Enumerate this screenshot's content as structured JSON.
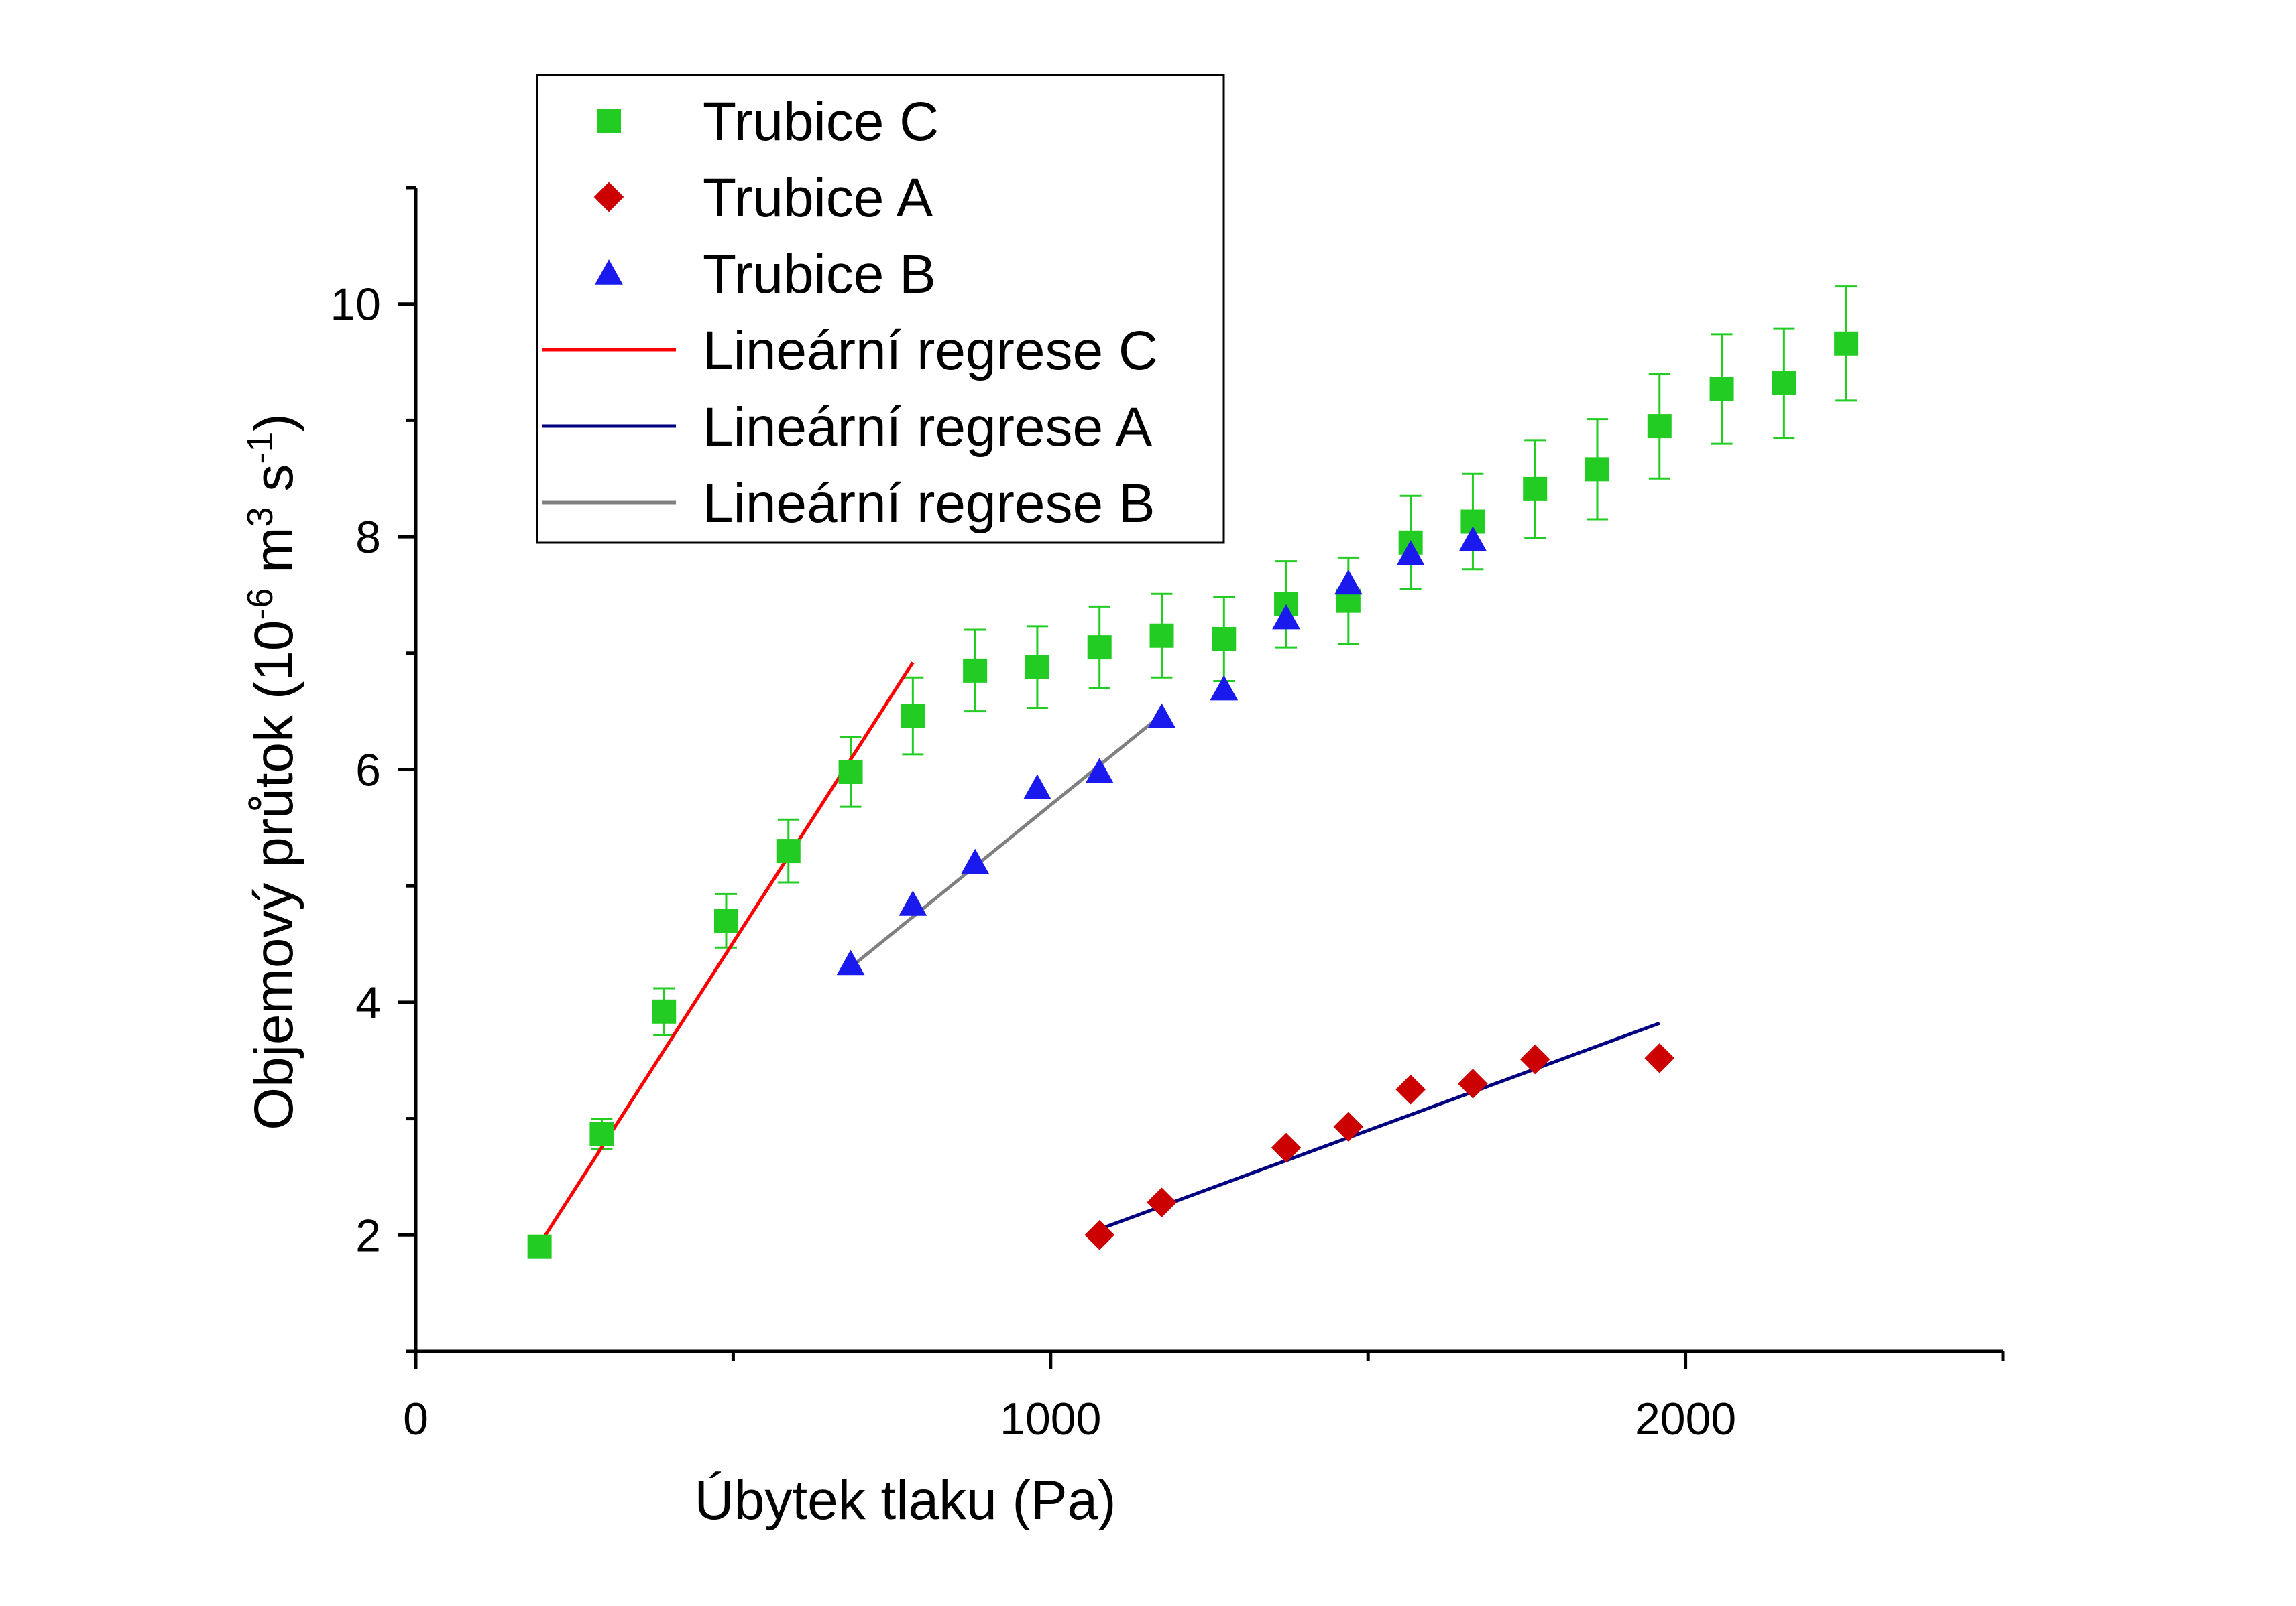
{
  "chart_data": {
    "type": "scatter",
    "xlabel": "Úbytek tlaku (Pa)",
    "ylabel": {
      "prefix": "Objemový průtok (10",
      "exp1": "-6",
      "mid1": " m",
      "exp2": "3",
      "mid2": " s",
      "exp3": "-1",
      "suffix": ")"
    },
    "xlim": [
      0,
      2500
    ],
    "ylim": [
      1,
      11
    ],
    "x_ticks": [
      0,
      1000,
      2000
    ],
    "x_tick_labels": [
      "0",
      "1000",
      "2000"
    ],
    "x_minor_ticks": [
      500,
      1500,
      2500
    ],
    "y_ticks": [
      2,
      4,
      6,
      8,
      10
    ],
    "y_tick_labels": [
      "2",
      "4",
      "6",
      "8",
      "10"
    ],
    "y_minor_ticks": [
      1,
      3,
      5,
      7,
      9,
      11
    ],
    "grid": false,
    "legend_position": "top-left",
    "series": [
      {
        "name": "Trubice C",
        "marker": "square",
        "color": "#22cc22",
        "points": [
          {
            "x": 195,
            "y": 1.9,
            "err": 0
          },
          {
            "x": 293,
            "y": 2.87,
            "err": 0.13
          },
          {
            "x": 391,
            "y": 3.92,
            "err": 0.2
          },
          {
            "x": 489,
            "y": 4.7,
            "err": 0.23
          },
          {
            "x": 587,
            "y": 5.3,
            "err": 0.27
          },
          {
            "x": 685,
            "y": 5.98,
            "err": 0.3
          },
          {
            "x": 783,
            "y": 6.46,
            "err": 0.33
          },
          {
            "x": 881,
            "y": 6.85,
            "err": 0.35
          },
          {
            "x": 979,
            "y": 6.88,
            "err": 0.35
          },
          {
            "x": 1077,
            "y": 7.05,
            "err": 0.35
          },
          {
            "x": 1175,
            "y": 7.15,
            "err": 0.36
          },
          {
            "x": 1273,
            "y": 7.12,
            "err": 0.36
          },
          {
            "x": 1371,
            "y": 7.42,
            "err": 0.37
          },
          {
            "x": 1469,
            "y": 7.45,
            "err": 0.37
          },
          {
            "x": 1567,
            "y": 7.95,
            "err": 0.4
          },
          {
            "x": 1665,
            "y": 8.13,
            "err": 0.41
          },
          {
            "x": 1763,
            "y": 8.41,
            "err": 0.42
          },
          {
            "x": 1861,
            "y": 8.58,
            "err": 0.43
          },
          {
            "x": 1959,
            "y": 8.95,
            "err": 0.45
          },
          {
            "x": 2057,
            "y": 9.27,
            "err": 0.47
          },
          {
            "x": 2155,
            "y": 9.32,
            "err": 0.47
          },
          {
            "x": 2253,
            "y": 9.66,
            "err": 0.49
          }
        ]
      },
      {
        "name": "Trubice A",
        "marker": "diamond",
        "color": "#cc0000",
        "points": [
          {
            "x": 1077,
            "y": 2.0
          },
          {
            "x": 1175,
            "y": 2.28
          },
          {
            "x": 1371,
            "y": 2.75
          },
          {
            "x": 1469,
            "y": 2.93
          },
          {
            "x": 1567,
            "y": 3.25
          },
          {
            "x": 1665,
            "y": 3.3
          },
          {
            "x": 1763,
            "y": 3.51
          },
          {
            "x": 1959,
            "y": 3.52
          }
        ]
      },
      {
        "name": "Trubice B",
        "marker": "triangle",
        "color": "#1a1aee",
        "points": [
          {
            "x": 685,
            "y": 4.33
          },
          {
            "x": 783,
            "y": 4.84
          },
          {
            "x": 881,
            "y": 5.2
          },
          {
            "x": 979,
            "y": 5.84
          },
          {
            "x": 1077,
            "y": 5.98
          },
          {
            "x": 1175,
            "y": 6.45
          },
          {
            "x": 1273,
            "y": 6.69
          },
          {
            "x": 1371,
            "y": 7.3
          },
          {
            "x": 1469,
            "y": 7.6
          },
          {
            "x": 1567,
            "y": 7.85
          },
          {
            "x": 1665,
            "y": 7.97
          }
        ]
      }
    ],
    "regressions": [
      {
        "name": "Lineární regrese C",
        "color": "#ff0000",
        "x": [
          195,
          783
        ],
        "y": [
          1.92,
          6.92
        ]
      },
      {
        "name": "Lineární regrese A",
        "color": "#000080",
        "x": [
          1077,
          1959
        ],
        "y": [
          2.05,
          3.82
        ]
      },
      {
        "name": "Lineární regrese B",
        "color": "#808080",
        "x": [
          685,
          1175
        ],
        "y": [
          4.3,
          6.47
        ]
      }
    ]
  }
}
